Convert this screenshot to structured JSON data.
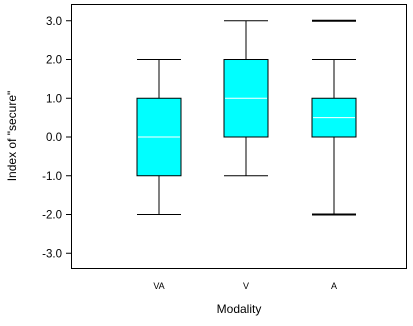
{
  "chart_data": {
    "type": "box",
    "xlabel": "Modality",
    "ylabel": "Index of \"secure\"",
    "ylim": [
      -3.5,
      3.5
    ],
    "yticks": [
      -3.0,
      -2.0,
      -1.0,
      0.0,
      1.0,
      2.0,
      3.0
    ],
    "ytick_labels": [
      "-3.0",
      "-2.0",
      "-1.0",
      "0.0",
      "1.0",
      "2.0",
      "3.0"
    ],
    "categories": [
      "VA",
      "V",
      "A"
    ],
    "boxes": [
      {
        "category": "VA",
        "min": -2.0,
        "q1": -1.0,
        "median": 0.0,
        "q3": 1.0,
        "max": 2.0,
        "outliers": []
      },
      {
        "category": "V",
        "min": -1.0,
        "q1": 0.0,
        "median": 1.0,
        "q3": 2.0,
        "max": 3.0,
        "outliers": []
      },
      {
        "category": "A",
        "min": -2.0,
        "q1": 0.0,
        "median": 0.5,
        "q3": 1.0,
        "max": 2.0,
        "outliers": [
          -2.0,
          3.0
        ]
      }
    ],
    "grid": false,
    "box_color": "#00ffff",
    "median_color": "#ffffff",
    "line_color": "#000000"
  }
}
